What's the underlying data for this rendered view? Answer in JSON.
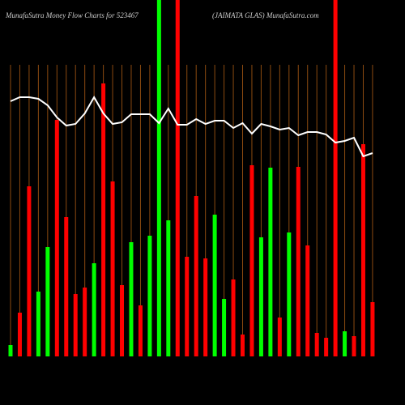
{
  "chart_data": {
    "type": "bar",
    "title": "MunafaSutra  Money Flow  Charts for 523467",
    "subtitle": "(JAIMATA GLAS) MunafaSutra.com",
    "categories": [
      null,
      null,
      null,
      null,
      null,
      null,
      null,
      null,
      null,
      null,
      null,
      null,
      null,
      null,
      null,
      null,
      null,
      null,
      null,
      null,
      null,
      null,
      null,
      null,
      null,
      null,
      null,
      null,
      null,
      null,
      null,
      null,
      null,
      null,
      null,
      null,
      null,
      null,
      null,
      null
    ],
    "ylim": [
      0,
      440
    ],
    "series": [
      {
        "color": "#ff0000",
        "colors": [
          "#00ff00",
          "#ff0000",
          "#ff0000",
          "#00ff00",
          "#00ff00",
          "#ff0000",
          "#ff0000",
          "#ff0000",
          "#ff0000",
          "#00ff00",
          "#ff0000",
          "#ff0000",
          "#ff0000",
          "#00ff00",
          "#ff0000",
          "#00ff00",
          "#00ff00",
          "#00ff00",
          "#ff0000",
          "#ff0000",
          "#ff0000",
          "#ff0000",
          "#00ff00",
          "#00ff00",
          "#ff0000",
          "#ff0000",
          "#ff0000",
          "#00ff00",
          "#00ff00",
          "#ff0000",
          "#00ff00",
          "#ff0000",
          "#ff0000",
          "#ff0000",
          "#ff0000",
          "#ff0000",
          "#00ff00",
          "#ff0000",
          "#ff0000",
          "#ff0000"
        ],
        "values": [
          14,
          54,
          210,
          80,
          135,
          292,
          172,
          77,
          85,
          115,
          337,
          216,
          88,
          141,
          63,
          149,
          440,
          168,
          440,
          123,
          198,
          121,
          175,
          71,
          95,
          27,
          236,
          147,
          233,
          48,
          153,
          234,
          137,
          29,
          23,
          440,
          31,
          25,
          262,
          67
        ]
      },
      {
        "type": "line",
        "color": "#ffffff",
        "values": [
          315,
          320,
          320,
          318,
          310,
          295,
          285,
          287,
          300,
          320,
          300,
          287,
          289,
          299,
          299,
          299,
          288,
          306,
          286,
          286,
          293,
          287,
          291,
          291,
          282,
          288,
          275,
          287,
          284,
          280,
          282,
          273,
          277,
          277,
          274,
          264,
          266,
          270,
          247,
          251
        ]
      }
    ],
    "grid": true,
    "grid_color": "#8b4a10"
  }
}
